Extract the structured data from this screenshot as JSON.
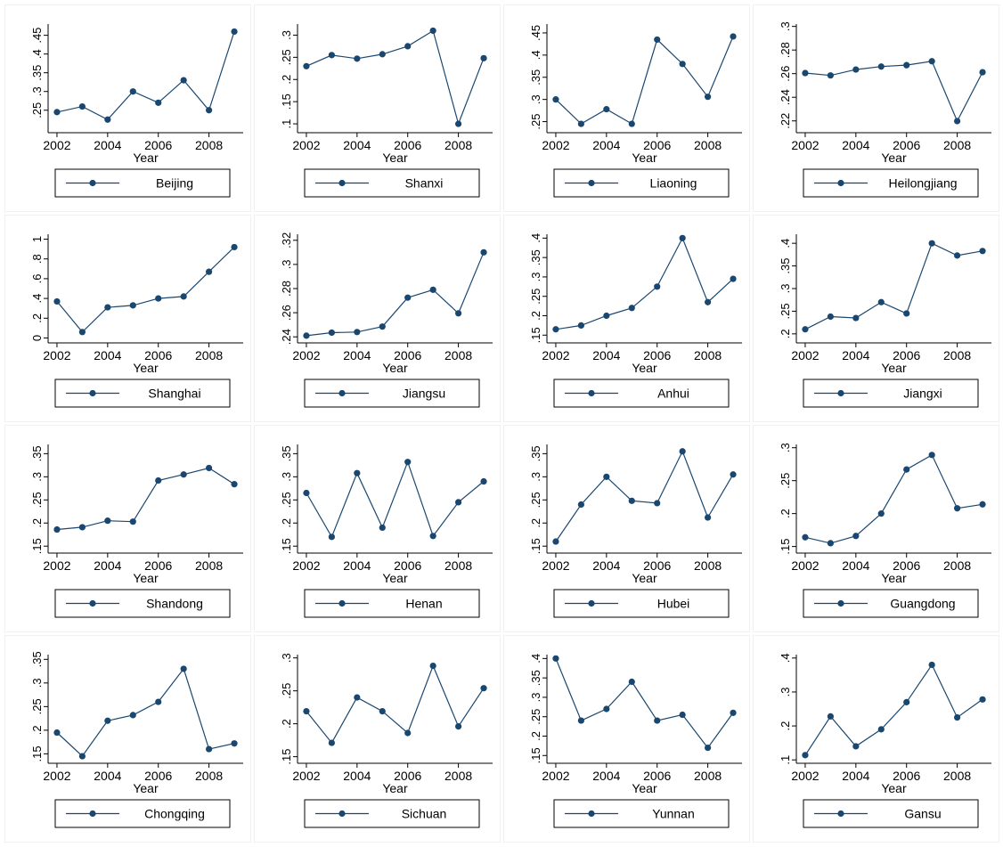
{
  "style": {
    "line_color": "#1a476f",
    "axis_color": "#000000",
    "panel_border": "#eaf2f3",
    "background": "#ffffff"
  },
  "chart_data": [
    {
      "type": "line",
      "x": [
        2002,
        2003,
        2004,
        2005,
        2006,
        2007,
        2008,
        2009
      ],
      "y": [
        0.245,
        0.26,
        0.225,
        0.3,
        0.27,
        0.33,
        0.25,
        0.46
      ],
      "yticks": [
        0.25,
        0.3,
        0.35,
        0.4,
        0.45
      ],
      "ytick_labels": [
        ".25",
        ".3",
        ".35",
        ".4",
        ".45"
      ],
      "ylim": [
        0.19,
        0.48
      ],
      "xticks": [
        2002,
        2004,
        2006,
        2008
      ],
      "xlabel": "Year",
      "legend": "Beijing",
      "grid": false
    },
    {
      "type": "line",
      "x": [
        2002,
        2003,
        2004,
        2005,
        2006,
        2007,
        2008,
        2009
      ],
      "y": [
        0.23,
        0.255,
        0.247,
        0.257,
        0.275,
        0.31,
        0.1,
        0.248
      ],
      "yticks": [
        0.1,
        0.15,
        0.2,
        0.25,
        0.3
      ],
      "ytick_labels": [
        ".1",
        ".15",
        ".2",
        ".25",
        ".3"
      ],
      "ylim": [
        0.08,
        0.325
      ],
      "xticks": [
        2002,
        2004,
        2006,
        2008
      ],
      "xlabel": "Year",
      "legend": "Shanxi",
      "grid": false
    },
    {
      "type": "line",
      "x": [
        2002,
        2003,
        2004,
        2005,
        2006,
        2007,
        2008,
        2009
      ],
      "y": [
        0.3,
        0.245,
        0.278,
        0.245,
        0.435,
        0.38,
        0.306,
        0.442
      ],
      "yticks": [
        0.25,
        0.3,
        0.35,
        0.4,
        0.45
      ],
      "ytick_labels": [
        ".25",
        ".3",
        ".35",
        ".4",
        ".45"
      ],
      "ylim": [
        0.225,
        0.47
      ],
      "xticks": [
        2002,
        2004,
        2006,
        2008
      ],
      "xlabel": "Year",
      "legend": "Liaoning",
      "grid": false
    },
    {
      "type": "line",
      "x": [
        2002,
        2003,
        2004,
        2005,
        2006,
        2007,
        2008,
        2009
      ],
      "y": [
        0.2605,
        0.2585,
        0.2635,
        0.266,
        0.2672,
        0.2705,
        0.2198,
        0.2612
      ],
      "yticks": [
        0.22,
        0.24,
        0.26,
        0.28,
        0.3
      ],
      "ytick_labels": [
        ".22",
        ".24",
        ".26",
        ".28",
        ".3"
      ],
      "ylim": [
        0.21,
        0.302
      ],
      "xticks": [
        2002,
        2004,
        2006,
        2008
      ],
      "xlabel": "Year",
      "legend": "Heilongjiang",
      "grid": false
    },
    {
      "type": "line",
      "x": [
        2002,
        2003,
        2004,
        2005,
        2006,
        2007,
        2008,
        2009
      ],
      "y": [
        0.37,
        0.06,
        0.31,
        0.33,
        0.4,
        0.42,
        0.67,
        0.92
      ],
      "yticks": [
        0,
        0.2,
        0.4,
        0.6,
        0.8,
        1
      ],
      "ytick_labels": [
        "0",
        ".2",
        ".4",
        ".6",
        ".8",
        "1"
      ],
      "ylim": [
        -0.05,
        1.05
      ],
      "xticks": [
        2002,
        2004,
        2006,
        2008
      ],
      "xlabel": "Year",
      "legend": "Shanghai",
      "grid": false
    },
    {
      "type": "line",
      "x": [
        2002,
        2003,
        2004,
        2005,
        2006,
        2007,
        2008,
        2009
      ],
      "y": [
        0.241,
        0.2435,
        0.244,
        0.2485,
        0.2725,
        0.279,
        0.2595,
        0.31
      ],
      "yticks": [
        0.24,
        0.26,
        0.28,
        0.3,
        0.32
      ],
      "ytick_labels": [
        ".24",
        ".26",
        ".28",
        ".3",
        ".32"
      ],
      "ylim": [
        0.235,
        0.325
      ],
      "xticks": [
        2002,
        2004,
        2006,
        2008
      ],
      "xlabel": "Year",
      "legend": "Jiangsu",
      "grid": false
    },
    {
      "type": "line",
      "x": [
        2002,
        2003,
        2004,
        2005,
        2006,
        2007,
        2008,
        2009
      ],
      "y": [
        0.165,
        0.175,
        0.2,
        0.22,
        0.275,
        0.4,
        0.235,
        0.295
      ],
      "yticks": [
        0.15,
        0.2,
        0.25,
        0.3,
        0.35,
        0.4
      ],
      "ytick_labels": [
        ".15",
        ".2",
        ".25",
        ".3",
        ".35",
        ".4"
      ],
      "ylim": [
        0.13,
        0.41
      ],
      "xticks": [
        2002,
        2004,
        2006,
        2008
      ],
      "xlabel": "Year",
      "legend": "Anhui",
      "grid": false
    },
    {
      "type": "line",
      "x": [
        2002,
        2003,
        2004,
        2005,
        2006,
        2007,
        2008,
        2009
      ],
      "y": [
        0.21,
        0.238,
        0.235,
        0.27,
        0.245,
        0.4,
        0.373,
        0.383
      ],
      "yticks": [
        0.2,
        0.25,
        0.3,
        0.35,
        0.4
      ],
      "ytick_labels": [
        ".2",
        ".25",
        ".3",
        ".35",
        ".4"
      ],
      "ylim": [
        0.18,
        0.42
      ],
      "xticks": [
        2002,
        2004,
        2006,
        2008
      ],
      "xlabel": "Year",
      "legend": "Jiangxi",
      "grid": false
    },
    {
      "type": "line",
      "x": [
        2002,
        2003,
        2004,
        2005,
        2006,
        2007,
        2008,
        2009
      ],
      "y": [
        0.186,
        0.191,
        0.205,
        0.203,
        0.292,
        0.305,
        0.319,
        0.284
      ],
      "yticks": [
        0.15,
        0.2,
        0.25,
        0.3,
        0.35
      ],
      "ytick_labels": [
        ".15",
        ".2",
        ".25",
        ".3",
        ".35"
      ],
      "ylim": [
        0.135,
        0.37
      ],
      "xticks": [
        2002,
        2004,
        2006,
        2008
      ],
      "xlabel": "Year",
      "legend": "Shandong",
      "grid": false
    },
    {
      "type": "line",
      "x": [
        2002,
        2003,
        2004,
        2005,
        2006,
        2007,
        2008,
        2009
      ],
      "y": [
        0.265,
        0.17,
        0.308,
        0.19,
        0.332,
        0.172,
        0.245,
        0.29
      ],
      "yticks": [
        0.15,
        0.2,
        0.25,
        0.3,
        0.35
      ],
      "ytick_labels": [
        ".15",
        ".2",
        ".25",
        ".3",
        ".35"
      ],
      "ylim": [
        0.135,
        0.37
      ],
      "xticks": [
        2002,
        2004,
        2006,
        2008
      ],
      "xlabel": "Year",
      "legend": "Henan",
      "grid": false
    },
    {
      "type": "line",
      "x": [
        2002,
        2003,
        2004,
        2005,
        2006,
        2007,
        2008,
        2009
      ],
      "y": [
        0.16,
        0.24,
        0.3,
        0.248,
        0.243,
        0.355,
        0.212,
        0.305
      ],
      "yticks": [
        0.15,
        0.2,
        0.25,
        0.3,
        0.35
      ],
      "ytick_labels": [
        ".15",
        ".2",
        ".25",
        ".3",
        ".35"
      ],
      "ylim": [
        0.135,
        0.37
      ],
      "xticks": [
        2002,
        2004,
        2006,
        2008
      ],
      "xlabel": "Year",
      "legend": "Hubei",
      "grid": false
    },
    {
      "type": "line",
      "x": [
        2002,
        2003,
        2004,
        2005,
        2006,
        2007,
        2008,
        2009
      ],
      "y": [
        0.164,
        0.155,
        0.166,
        0.2,
        0.267,
        0.289,
        0.208,
        0.214
      ],
      "yticks": [
        0.15,
        0.2,
        0.25,
        0.3
      ],
      "ytick_labels": [
        ".15",
        ".2",
        ".25",
        ".3"
      ],
      "ylim": [
        0.14,
        0.305
      ],
      "xticks": [
        2002,
        2004,
        2006,
        2008
      ],
      "xlabel": "Year",
      "legend": "Guangdong",
      "grid": false
    },
    {
      "type": "line",
      "x": [
        2002,
        2003,
        2004,
        2005,
        2006,
        2007,
        2008,
        2009
      ],
      "y": [
        0.195,
        0.145,
        0.22,
        0.232,
        0.26,
        0.33,
        0.16,
        0.172
      ],
      "yticks": [
        0.15,
        0.2,
        0.25,
        0.3,
        0.35
      ],
      "ytick_labels": [
        ".15",
        ".2",
        ".25",
        ".3",
        ".35"
      ],
      "ylim": [
        0.13,
        0.36
      ],
      "xticks": [
        2002,
        2004,
        2006,
        2008
      ],
      "xlabel": "Year",
      "legend": "Chongqing",
      "grid": false
    },
    {
      "type": "line",
      "x": [
        2002,
        2003,
        2004,
        2005,
        2006,
        2007,
        2008,
        2009
      ],
      "y": [
        0.219,
        0.171,
        0.24,
        0.219,
        0.186,
        0.288,
        0.196,
        0.254
      ],
      "yticks": [
        0.15,
        0.2,
        0.25,
        0.3
      ],
      "ytick_labels": [
        ".15",
        ".2",
        ".25",
        ".3"
      ],
      "ylim": [
        0.14,
        0.305
      ],
      "xticks": [
        2002,
        2004,
        2006,
        2008
      ],
      "xlabel": "Year",
      "legend": "Sichuan",
      "grid": false
    },
    {
      "type": "line",
      "x": [
        2002,
        2003,
        2004,
        2005,
        2006,
        2007,
        2008,
        2009
      ],
      "y": [
        0.4,
        0.24,
        0.27,
        0.34,
        0.24,
        0.255,
        0.17,
        0.26
      ],
      "yticks": [
        0.15,
        0.2,
        0.25,
        0.3,
        0.35,
        0.4
      ],
      "ytick_labels": [
        ".15",
        ".2",
        ".25",
        ".3",
        ".35",
        ".4"
      ],
      "ylim": [
        0.13,
        0.41
      ],
      "xticks": [
        2002,
        2004,
        2006,
        2008
      ],
      "xlabel": "Year",
      "legend": "Yunnan",
      "grid": false
    },
    {
      "type": "line",
      "x": [
        2002,
        2003,
        2004,
        2005,
        2006,
        2007,
        2008,
        2009
      ],
      "y": [
        0.114,
        0.228,
        0.14,
        0.19,
        0.27,
        0.38,
        0.225,
        0.278
      ],
      "yticks": [
        0.1,
        0.2,
        0.3,
        0.4
      ],
      "ytick_labels": [
        ".1",
        ".2",
        ".3",
        ".4"
      ],
      "ylim": [
        0.09,
        0.41
      ],
      "xticks": [
        2002,
        2004,
        2006,
        2008
      ],
      "xlabel": "Year",
      "legend": "Gansu",
      "grid": false
    }
  ]
}
